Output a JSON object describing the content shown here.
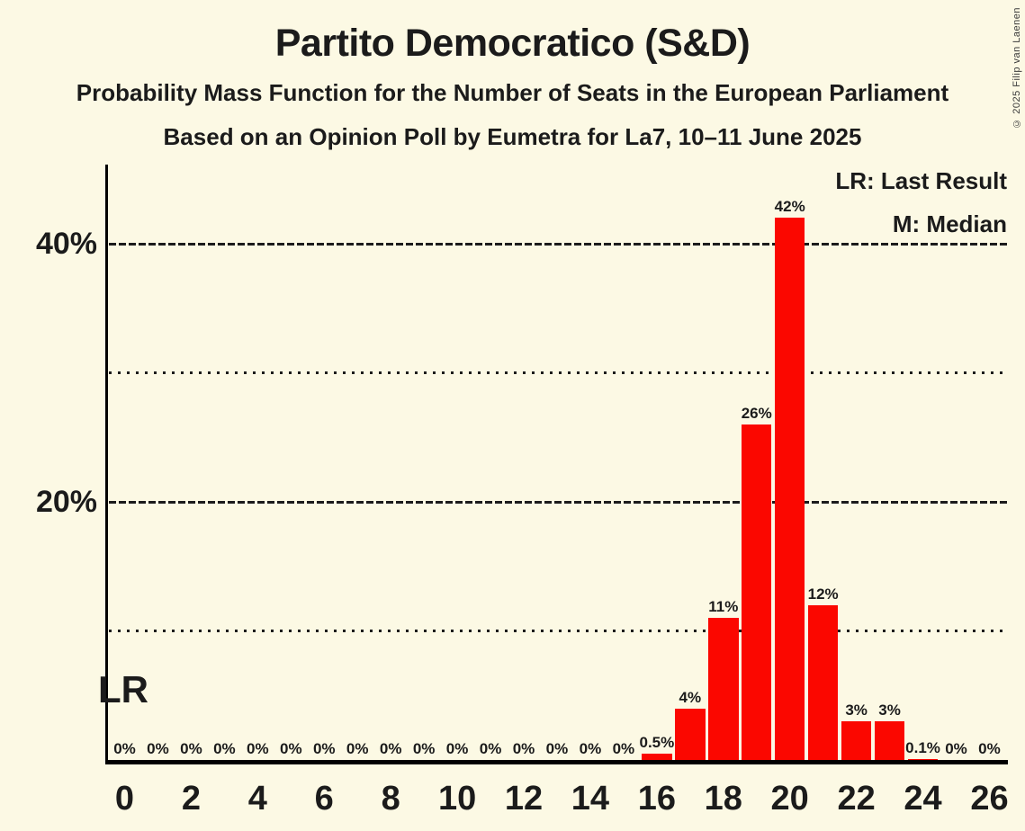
{
  "title": "Partito Democratico (S&D)",
  "subtitles": [
    "Probability Mass Function for the Number of Seats in the European Parliament",
    "Based on an Opinion Poll by Eumetra for La7, 10–11 June 2025"
  ],
  "legend": {
    "lr": "LR: Last Result",
    "median": "M: Median"
  },
  "copyright": "© 2025 Filip van Laenen",
  "colors": {
    "background": "#FCF9E4",
    "bar": "#FB0700",
    "text": "#1B1B1B",
    "axis": "#000000",
    "median_text": "#FCF9E4",
    "gridline": "#1C1C1C"
  },
  "chart_data": {
    "type": "bar",
    "x": [
      0,
      1,
      2,
      3,
      4,
      5,
      6,
      7,
      8,
      9,
      10,
      11,
      12,
      13,
      14,
      15,
      16,
      17,
      18,
      19,
      20,
      21,
      22,
      23,
      24,
      25,
      26
    ],
    "values": [
      0,
      0,
      0,
      0,
      0,
      0,
      0,
      0,
      0,
      0,
      0,
      0,
      0,
      0,
      0,
      0,
      0.5,
      4,
      11,
      26,
      42,
      12,
      3,
      3,
      0.1,
      0,
      0
    ],
    "bar_labels": [
      "0%",
      "0%",
      "0%",
      "0%",
      "0%",
      "0%",
      "0%",
      "0%",
      "0%",
      "0%",
      "0%",
      "0%",
      "0%",
      "0%",
      "0%",
      "0%",
      "0.5%",
      "4%",
      "11%",
      "26%",
      "42%",
      "12%",
      "3%",
      "3%",
      "0.1%",
      "0%",
      "0%"
    ],
    "x_tick_labels": [
      "0",
      "2",
      "4",
      "6",
      "8",
      "10",
      "12",
      "14",
      "16",
      "18",
      "20",
      "22",
      "24",
      "26"
    ],
    "x_tick_seats": [
      0,
      2,
      4,
      6,
      8,
      10,
      12,
      14,
      16,
      18,
      20,
      22,
      24,
      26
    ],
    "y_ticks": [
      {
        "value": 20,
        "label": "20%"
      },
      {
        "value": 40,
        "label": "40%"
      }
    ],
    "gridlines": [
      {
        "value": 10,
        "style": "dotted"
      },
      {
        "value": 20,
        "style": "dashed"
      },
      {
        "value": 30,
        "style": "dotted"
      },
      {
        "value": 40,
        "style": "dashed"
      }
    ],
    "ylim": [
      0,
      46
    ],
    "annotations": {
      "last_result_label": "LR",
      "last_result_seat": 0,
      "median_label": "M",
      "median_seat": 20
    }
  }
}
